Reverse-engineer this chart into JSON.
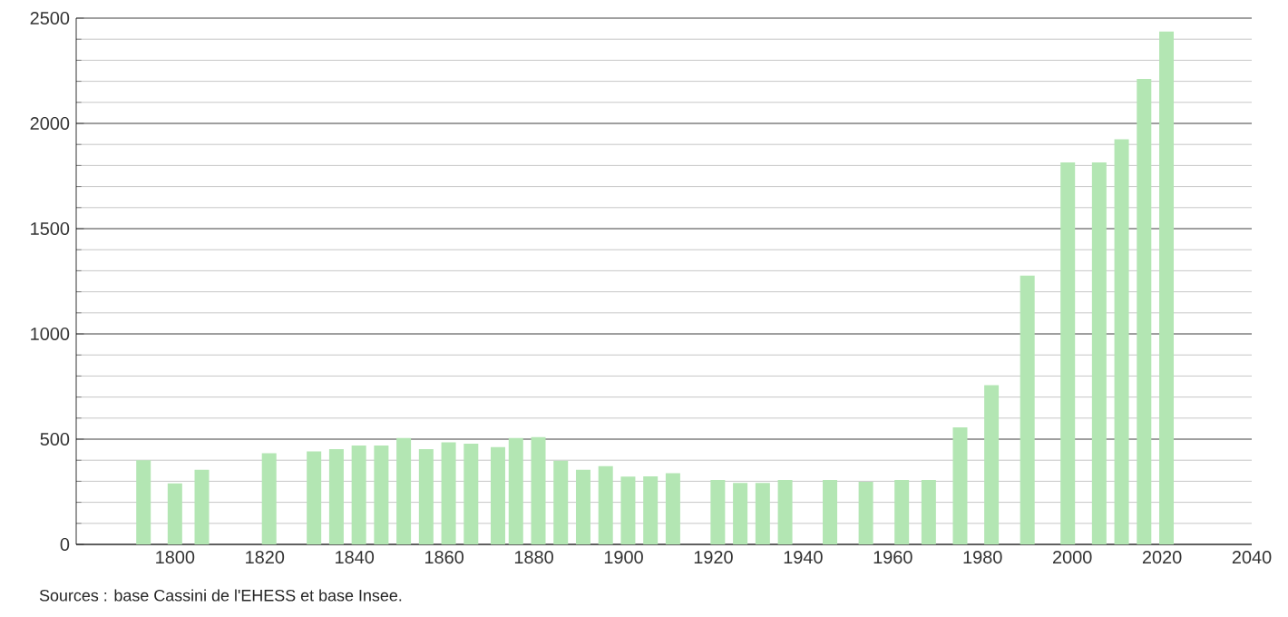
{
  "chart_data": {
    "type": "bar",
    "x": [
      1793,
      1800,
      1806,
      1821,
      1831,
      1836,
      1841,
      1846,
      1851,
      1856,
      1861,
      1866,
      1872,
      1876,
      1881,
      1886,
      1891,
      1896,
      1901,
      1906,
      1911,
      1921,
      1926,
      1931,
      1936,
      1946,
      1954,
      1962,
      1968,
      1975,
      1982,
      1990,
      1999,
      2006,
      2011,
      2016,
      2021
    ],
    "values": [
      400,
      290,
      355,
      433,
      442,
      453,
      470,
      470,
      505,
      453,
      485,
      479,
      462,
      505,
      510,
      398,
      355,
      372,
      322,
      323,
      338,
      306,
      292,
      292,
      306,
      306,
      297,
      306,
      306,
      556,
      757,
      1277,
      1815,
      1815,
      1925,
      2211,
      2436
    ],
    "color": "#b3e6b3",
    "xlim": [
      1778,
      2040
    ],
    "xticks": [
      1800,
      1820,
      1840,
      1860,
      1880,
      1900,
      1920,
      1940,
      1960,
      1980,
      2000,
      2020,
      2040
    ],
    "ylim": [
      0,
      2500
    ],
    "yticks": [
      0,
      500,
      1000,
      1500,
      2000,
      2500
    ],
    "grid": "y",
    "annotations": [
      "Sources : base Cassini de l'EHESS et base Insee."
    ]
  }
}
